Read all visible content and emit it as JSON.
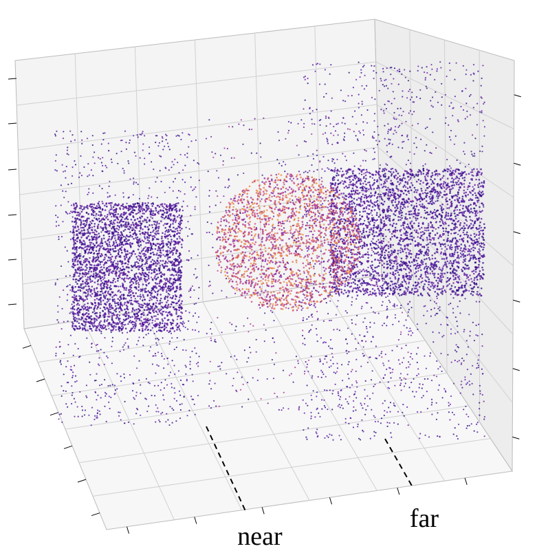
{
  "annotations": {
    "near": "near",
    "far": "far"
  }
}
